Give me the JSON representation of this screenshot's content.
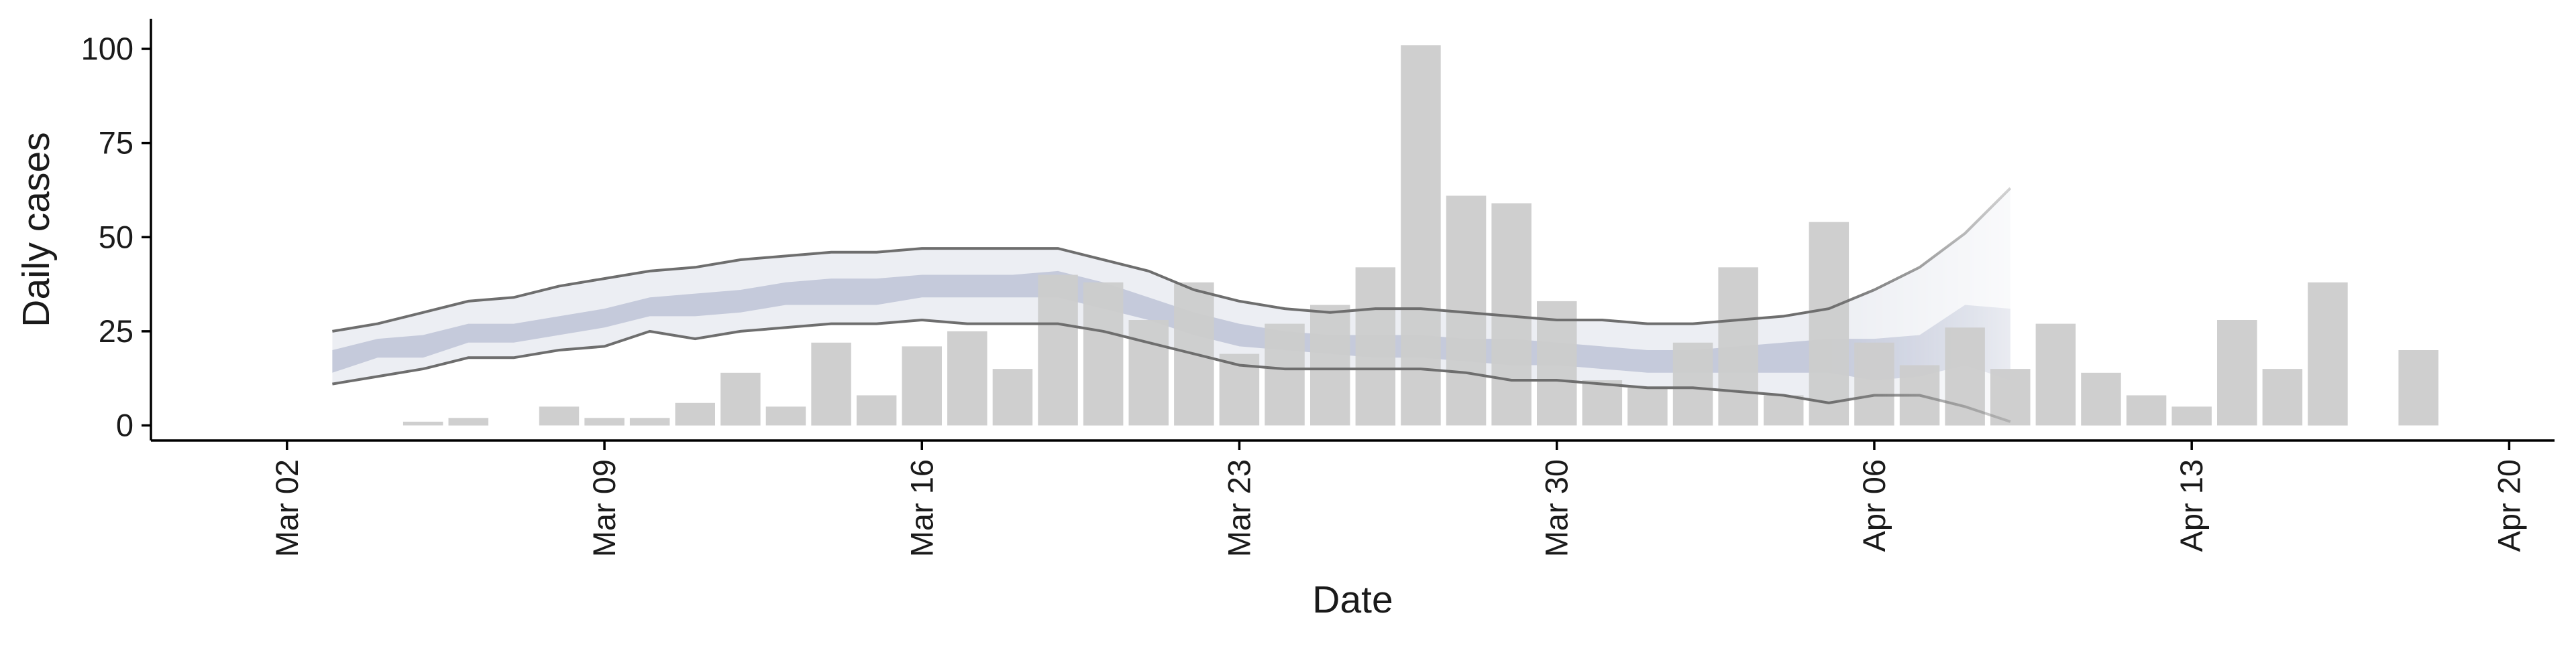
{
  "chart_data": {
    "type": "bar",
    "xlabel": "Date",
    "ylabel": "Daily cases",
    "ylim": [
      -4,
      108
    ],
    "yticks": [
      0,
      25,
      50,
      75,
      100
    ],
    "xlim": [
      "2020-02-28",
      "2020-04-21"
    ],
    "xticks": [
      {
        "date": "2020-03-02",
        "label": "Mar 02"
      },
      {
        "date": "2020-03-09",
        "label": "Mar 09"
      },
      {
        "date": "2020-03-16",
        "label": "Mar 16"
      },
      {
        "date": "2020-03-23",
        "label": "Mar 23"
      },
      {
        "date": "2020-03-30",
        "label": "Mar 30"
      },
      {
        "date": "2020-04-06",
        "label": "Apr 06"
      },
      {
        "date": "2020-04-13",
        "label": "Apr 13"
      },
      {
        "date": "2020-04-20",
        "label": "Apr 20"
      }
    ],
    "grid": false,
    "bars": {
      "color": "#cccccc",
      "dates": [
        "2020-03-05",
        "2020-03-06",
        "2020-03-07",
        "2020-03-08",
        "2020-03-09",
        "2020-03-10",
        "2020-03-11",
        "2020-03-12",
        "2020-03-13",
        "2020-03-14",
        "2020-03-15",
        "2020-03-16",
        "2020-03-17",
        "2020-03-18",
        "2020-03-19",
        "2020-03-20",
        "2020-03-21",
        "2020-03-22",
        "2020-03-23",
        "2020-03-24",
        "2020-03-25",
        "2020-03-26",
        "2020-03-27",
        "2020-03-28",
        "2020-03-29",
        "2020-03-30",
        "2020-03-31",
        "2020-04-01",
        "2020-04-02",
        "2020-04-03",
        "2020-04-04",
        "2020-04-05",
        "2020-04-06",
        "2020-04-07",
        "2020-04-08",
        "2020-04-09",
        "2020-04-10",
        "2020-04-11",
        "2020-04-12",
        "2020-04-13",
        "2020-04-14",
        "2020-04-15",
        "2020-04-16",
        "2020-04-17",
        "2020-04-18"
      ],
      "values": [
        1,
        2,
        0,
        5,
        2,
        2,
        6,
        14,
        5,
        22,
        8,
        21,
        25,
        15,
        40,
        38,
        28,
        38,
        19,
        27,
        32,
        42,
        101,
        61,
        59,
        33,
        12,
        10,
        22,
        42,
        8,
        54,
        22,
        16,
        26,
        15,
        27,
        14,
        8,
        5,
        28,
        15,
        38,
        0,
        20
      ]
    },
    "estimate": {
      "dates": [
        "2020-03-03",
        "2020-03-04",
        "2020-03-05",
        "2020-03-06",
        "2020-03-07",
        "2020-03-08",
        "2020-03-09",
        "2020-03-10",
        "2020-03-11",
        "2020-03-12",
        "2020-03-13",
        "2020-03-14",
        "2020-03-15",
        "2020-03-16",
        "2020-03-17",
        "2020-03-18",
        "2020-03-19",
        "2020-03-20",
        "2020-03-21",
        "2020-03-22",
        "2020-03-23",
        "2020-03-24",
        "2020-03-25",
        "2020-03-26",
        "2020-03-27",
        "2020-03-28",
        "2020-03-29",
        "2020-03-30",
        "2020-03-31",
        "2020-04-01",
        "2020-04-02",
        "2020-04-03",
        "2020-04-04",
        "2020-04-05",
        "2020-04-06",
        "2020-04-07",
        "2020-04-08",
        "2020-04-09"
      ],
      "upper_90": [
        25,
        27,
        30,
        33,
        34,
        37,
        39,
        41,
        42,
        44,
        45,
        46,
        46,
        47,
        47,
        47,
        47,
        44,
        41,
        36,
        33,
        31,
        30,
        31,
        31,
        30,
        29,
        28,
        28,
        27,
        27,
        28,
        29,
        31,
        36,
        42,
        51,
        63
      ],
      "lower_90": [
        11,
        13,
        15,
        18,
        18,
        20,
        21,
        25,
        23,
        25,
        26,
        27,
        27,
        28,
        27,
        27,
        27,
        25,
        22,
        19,
        16,
        15,
        15,
        15,
        15,
        14,
        12,
        12,
        11,
        10,
        10,
        9,
        8,
        6,
        8,
        8,
        5,
        1
      ],
      "upper_50": [
        20,
        23,
        24,
        27,
        27,
        29,
        31,
        34,
        35,
        36,
        38,
        39,
        39,
        40,
        40,
        40,
        41,
        38,
        34,
        30,
        27,
        25,
        24,
        24,
        24,
        23,
        23,
        22,
        21,
        20,
        20,
        21,
        22,
        23,
        23,
        24,
        32,
        31
      ],
      "lower_50": [
        14,
        18,
        18,
        22,
        22,
        24,
        26,
        29,
        29,
        30,
        32,
        32,
        32,
        34,
        34,
        34,
        34,
        31,
        28,
        24,
        21,
        20,
        19,
        18,
        18,
        17,
        16,
        16,
        15,
        14,
        14,
        14,
        14,
        14,
        12,
        13,
        16,
        12
      ],
      "band_90_color": "#eceef3",
      "band_50_color": "#c5cadb",
      "line_color": "#6e6e6e",
      "estimate_start": "2020-04-05"
    }
  }
}
